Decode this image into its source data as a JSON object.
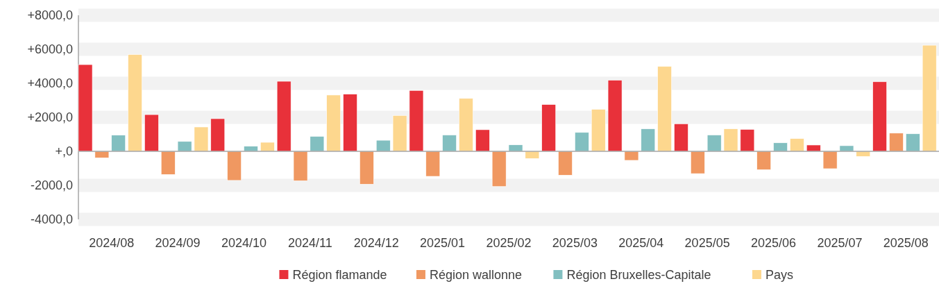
{
  "chart_data": {
    "type": "bar",
    "categories": [
      "2024/08",
      "2024/09",
      "2024/10",
      "2024/11",
      "2024/12",
      "2025/01",
      "2025/02",
      "2025/03",
      "2025/04",
      "2025/05",
      "2025/06",
      "2025/07",
      "2025/08"
    ],
    "series": [
      {
        "name": "Région flamande",
        "color": "#e8313a",
        "values": [
          5100,
          2160,
          1920,
          4120,
          3360,
          3580,
          1270,
          2750,
          4180,
          1620,
          1290,
          370,
          4090
        ]
      },
      {
        "name": "Région wallonne",
        "color": "#f09861",
        "values": [
          -380,
          -1360,
          -1710,
          -1730,
          -1930,
          -1470,
          -2070,
          -1400,
          -530,
          -1310,
          -1080,
          -1020,
          1070
        ]
      },
      {
        "name": "Région Bruxelles-Capitale",
        "color": "#82bfc0",
        "values": [
          950,
          580,
          300,
          880,
          650,
          960,
          380,
          1110,
          1320,
          960,
          500,
          330,
          1030
        ]
      },
      {
        "name": "Pays",
        "color": "#fdd78e",
        "values": [
          5690,
          1430,
          530,
          3310,
          2110,
          3110,
          -420,
          2470,
          4990,
          1320,
          750,
          -300,
          6240
        ]
      }
    ],
    "ylim": [
      -4000,
      8000
    ],
    "yticks": [
      {
        "value": -4000,
        "label": "-4000,0"
      },
      {
        "value": -2000,
        "label": "-2000,0"
      },
      {
        "value": 0,
        "label": "+,0"
      },
      {
        "value": 2000,
        "label": "+2000,0"
      },
      {
        "value": 4000,
        "label": "+4000,0"
      },
      {
        "value": 6000,
        "label": "+6000,0"
      },
      {
        "value": 8000,
        "label": "+8000,0"
      }
    ],
    "grid": "y",
    "legend": "bottom"
  }
}
